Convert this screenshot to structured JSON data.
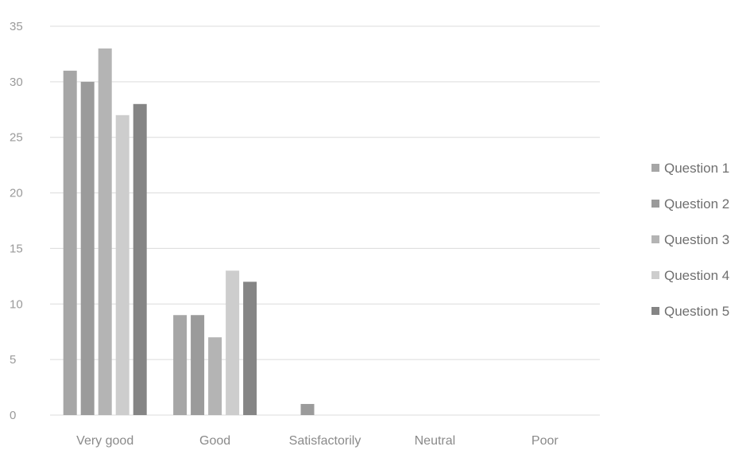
{
  "chart_data": {
    "type": "bar",
    "title": "",
    "xlabel": "",
    "ylabel": "",
    "categories": [
      "Very good",
      "Good",
      "Satisfactorily",
      "Neutral",
      "Poor"
    ],
    "series": [
      {
        "name": "Question 1",
        "values": [
          31,
          9,
          0,
          0,
          0
        ],
        "color": "#a6a6a6"
      },
      {
        "name": "Question 2",
        "values": [
          30,
          9,
          1,
          0,
          0
        ],
        "color": "#9b9b9b"
      },
      {
        "name": "Question 3",
        "values": [
          33,
          7,
          0,
          0,
          0
        ],
        "color": "#b4b4b4"
      },
      {
        "name": "Question 4",
        "values": [
          27,
          13,
          0,
          0,
          0
        ],
        "color": "#cdcdcd"
      },
      {
        "name": "Question 5",
        "values": [
          28,
          12,
          0,
          0,
          0
        ],
        "color": "#858585"
      }
    ],
    "ylim": [
      0,
      35
    ],
    "yticks": [
      0,
      5,
      10,
      15,
      20,
      25,
      30,
      35
    ],
    "grid": true,
    "legend": "right"
  }
}
